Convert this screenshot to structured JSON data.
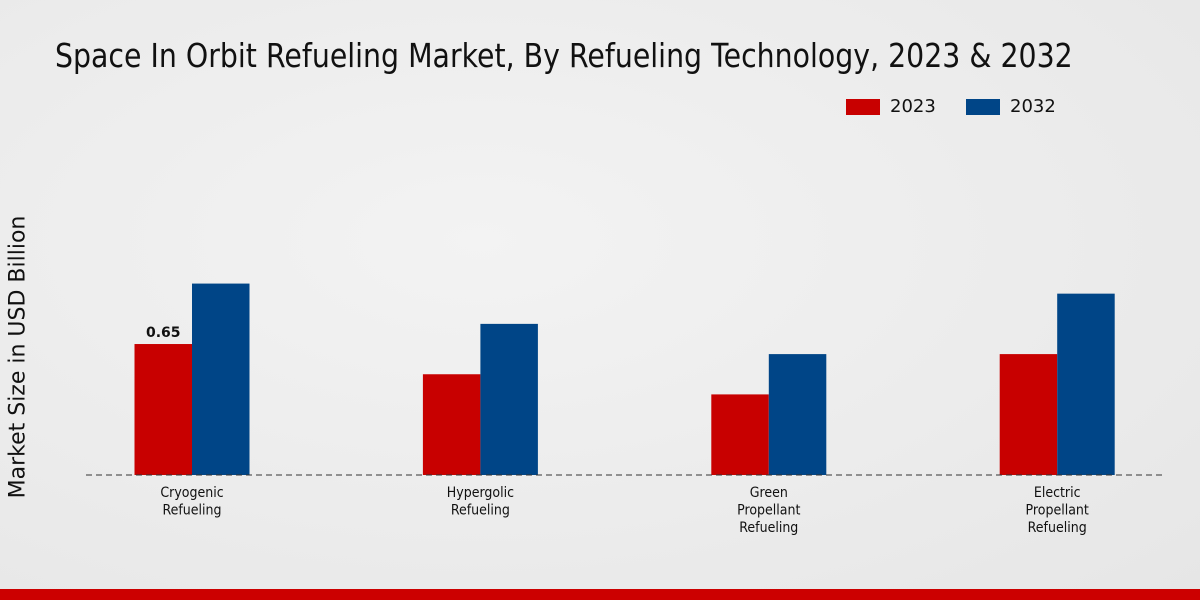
{
  "chart_data": {
    "type": "bar",
    "title": "Space In Orbit Refueling Market, By Refueling Technology, 2023 & 2032",
    "xlabel": "",
    "ylabel": "Market Size in USD Billion",
    "categories": [
      [
        "Cryogenic",
        "Refueling"
      ],
      [
        "Hypergolic",
        "Refueling"
      ],
      [
        "Green",
        "Propellant",
        "Refueling"
      ],
      [
        "Electric",
        "Propellant",
        "Refueling"
      ]
    ],
    "series": [
      {
        "name": "2023",
        "color": "#c80000",
        "values": [
          0.65,
          0.5,
          0.4,
          0.6
        ]
      },
      {
        "name": "2032",
        "color": "#004587",
        "values": [
          0.95,
          0.75,
          0.6,
          0.9
        ]
      }
    ],
    "data_labels": [
      {
        "series": 0,
        "index": 0,
        "text": "0.65"
      }
    ],
    "ylim": [
      0,
      1.1
    ],
    "grid": false,
    "legend": "top-right"
  }
}
